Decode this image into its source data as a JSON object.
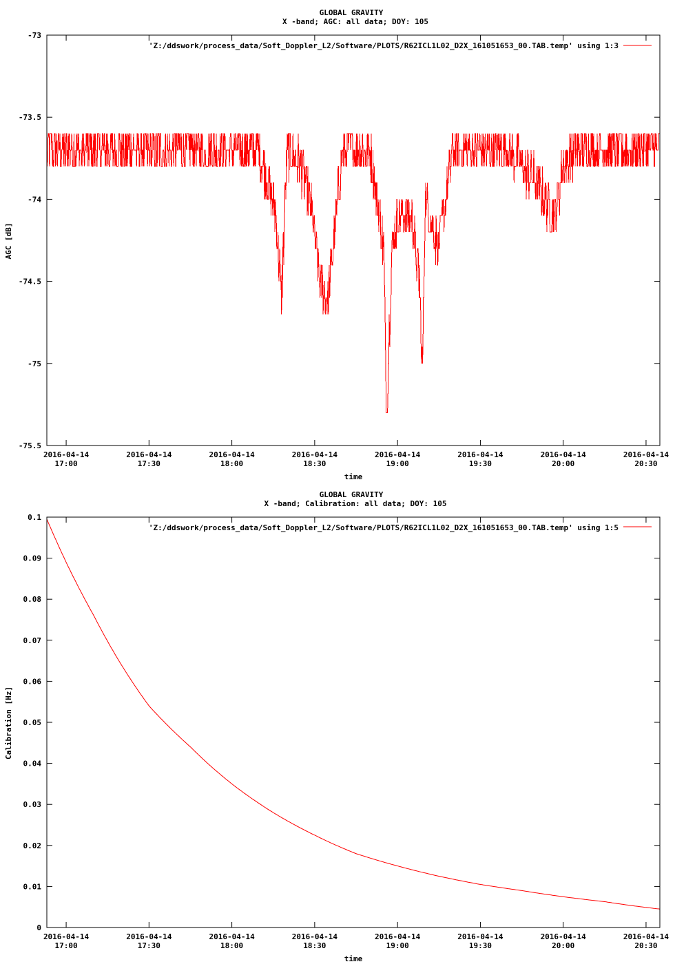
{
  "charts": [
    {
      "type": "line",
      "title": "GLOBAL GRAVITY",
      "subtitle": "X -band; AGC: all data; DOY: 105",
      "xlabel": "time",
      "ylabel": "AGC [dB]",
      "legend": "'Z:/ddswork/process_data/Soft_Doppler_L2/Software/PLOTS/R62ICL1L02_D2X_161051653_00.TAB.temp' using 1:3",
      "legend_position": "top-right",
      "series_color": "#ff0000",
      "xlim": [
        "2016-04-14 16:53",
        "2016-04-14 20:35"
      ],
      "ylim": [
        -75.5,
        -73
      ],
      "y_ticks": [
        -73,
        -73.5,
        -74,
        -74.5,
        -75,
        -75.5
      ],
      "y_tick_labels": [
        "-73",
        "-73.5",
        "-74",
        "-74.5",
        "-75",
        "-75.5"
      ],
      "x_ticks": [
        "2016-04-14 17:00",
        "2016-04-14 17:30",
        "2016-04-14 18:00",
        "2016-04-14 18:30",
        "2016-04-14 19:00",
        "2016-04-14 19:30",
        "2016-04-14 20:00",
        "2016-04-14 20:30"
      ],
      "x_tick_dates": [
        "2016-04-14",
        "2016-04-14",
        "2016-04-14",
        "2016-04-14",
        "2016-04-14",
        "2016-04-14",
        "2016-04-14",
        "2016-04-14"
      ],
      "x_tick_times": [
        "17:00",
        "17:30",
        "18:00",
        "18:30",
        "19:00",
        "19:30",
        "20:00",
        "20:30"
      ],
      "grid": false,
      "x": [
        "2016-04-14 16:53",
        "2016-04-14 17:00",
        "2016-04-14 17:10",
        "2016-04-14 17:20",
        "2016-04-14 17:30",
        "2016-04-14 17:40",
        "2016-04-14 17:50",
        "2016-04-14 18:00",
        "2016-04-14 18:10",
        "2016-04-14 18:13",
        "2016-04-14 18:16",
        "2016-04-14 18:18",
        "2016-04-14 18:20",
        "2016-04-14 18:25",
        "2016-04-14 18:28",
        "2016-04-14 18:30",
        "2016-04-14 18:32",
        "2016-04-14 18:35",
        "2016-04-14 18:40",
        "2016-04-14 18:45",
        "2016-04-14 18:50",
        "2016-04-14 18:55",
        "2016-04-14 18:56",
        "2016-04-14 18:58",
        "2016-04-14 19:00",
        "2016-04-14 19:05",
        "2016-04-14 19:08",
        "2016-04-14 19:09",
        "2016-04-14 19:10",
        "2016-04-14 19:15",
        "2016-04-14 19:20",
        "2016-04-14 19:30",
        "2016-04-14 19:40",
        "2016-04-14 19:50",
        "2016-04-14 19:57",
        "2016-04-14 20:00",
        "2016-04-14 20:05",
        "2016-04-14 20:10",
        "2016-04-14 20:20",
        "2016-04-14 20:30",
        "2016-04-14 20:35"
      ],
      "y": [
        -73.7,
        -73.7,
        -73.7,
        -73.7,
        -73.7,
        -73.7,
        -73.7,
        -73.7,
        -73.7,
        -73.9,
        -74.1,
        -74.6,
        -73.7,
        -73.8,
        -74.0,
        -74.2,
        -74.5,
        -74.6,
        -73.7,
        -73.7,
        -73.7,
        -74.3,
        -75.3,
        -74.3,
        -74.1,
        -74.1,
        -74.5,
        -75.1,
        -74.0,
        -74.3,
        -73.7,
        -73.7,
        -73.7,
        -73.9,
        -74.1,
        -73.8,
        -73.7,
        -73.7,
        -73.7,
        -73.7,
        -73.7
      ],
      "noise_amplitude": 0.3
    },
    {
      "type": "line",
      "title": "GLOBAL GRAVITY",
      "subtitle": "X -band; Calibration: all data; DOY: 105",
      "xlabel": "time",
      "ylabel": "Calibration [Hz]",
      "legend": "'Z:/ddswork/process_data/Soft_Doppler_L2/Software/PLOTS/R62ICL1L02_D2X_161051653_00.TAB.temp' using 1:5",
      "legend_position": "top-right",
      "series_color": "#ff0000",
      "xlim": [
        "2016-04-14 16:53",
        "2016-04-14 20:35"
      ],
      "ylim": [
        0,
        0.1
      ],
      "y_ticks": [
        0.1,
        0.09,
        0.08,
        0.07,
        0.06,
        0.05,
        0.04,
        0.03,
        0.02,
        0.01,
        0
      ],
      "y_tick_labels": [
        "0.1",
        "0.09",
        "0.08",
        "0.07",
        "0.06",
        "0.05",
        "0.04",
        "0.03",
        "0.02",
        "0.01",
        "0"
      ],
      "x_ticks": [
        "2016-04-14 17:00",
        "2016-04-14 17:30",
        "2016-04-14 18:00",
        "2016-04-14 18:30",
        "2016-04-14 19:00",
        "2016-04-14 19:30",
        "2016-04-14 20:00",
        "2016-04-14 20:30"
      ],
      "x_tick_dates": [
        "2016-04-14",
        "2016-04-14",
        "2016-04-14",
        "2016-04-14",
        "2016-04-14",
        "2016-04-14",
        "2016-04-14",
        "2016-04-14"
      ],
      "x_tick_times": [
        "17:00",
        "17:30",
        "18:00",
        "18:30",
        "19:00",
        "19:30",
        "20:00",
        "20:30"
      ],
      "grid": false,
      "x": [
        "2016-04-14 16:53",
        "2016-04-14 17:00",
        "2016-04-14 17:10",
        "2016-04-14 17:20",
        "2016-04-14 17:30",
        "2016-04-14 17:45",
        "2016-04-14 18:00",
        "2016-04-14 18:15",
        "2016-04-14 18:30",
        "2016-04-14 18:45",
        "2016-04-14 19:00",
        "2016-04-14 19:15",
        "2016-04-14 19:30",
        "2016-04-14 19:45",
        "2016-04-14 20:00",
        "2016-04-14 20:15",
        "2016-04-14 20:35"
      ],
      "y": [
        0.0995,
        0.089,
        0.076,
        0.064,
        0.054,
        0.044,
        0.035,
        0.028,
        0.0225,
        0.018,
        0.015,
        0.0125,
        0.0105,
        0.009,
        0.0075,
        0.0063,
        0.0045
      ]
    }
  ]
}
